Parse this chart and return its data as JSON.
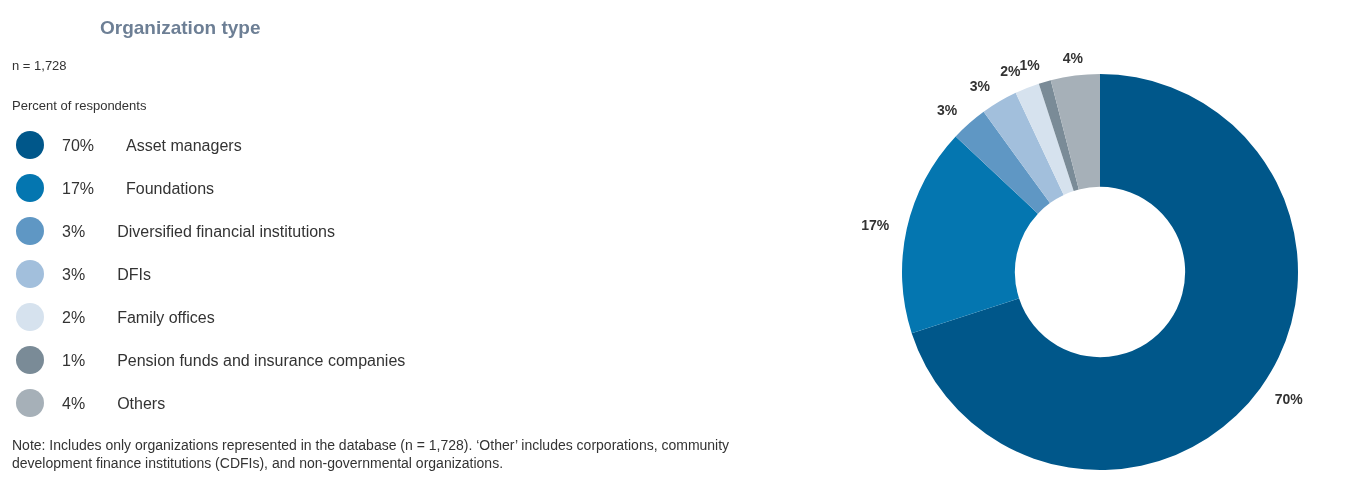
{
  "chart_data": {
    "type": "donut",
    "title": "Organization type",
    "subtitle": "n = 1,728",
    "legend_title": "Percent of respondents",
    "categories": [
      "Asset managers",
      "Foundations",
      "Diversified financial institutions",
      "DFIs",
      "Family offices",
      "Pension funds and insurance companies",
      "Others"
    ],
    "values": [
      70,
      17,
      3,
      3,
      2,
      1,
      4
    ],
    "colors": [
      "#00578a",
      "#0476b0",
      "#5f97c4",
      "#a2bfdc",
      "#d6e2ee",
      "#7a8b97",
      "#a6b0b8"
    ],
    "value_labels": [
      "70%",
      "17%",
      "3%",
      "3%",
      "2%",
      "1%",
      "4%"
    ],
    "legend": "left",
    "annotations": [
      "Note: Includes only organizations represented in the database (n = 1,728). ‘Other’ includes corporations, community development finance institutions (CDFIs), and non-governmental organizations."
    ]
  }
}
